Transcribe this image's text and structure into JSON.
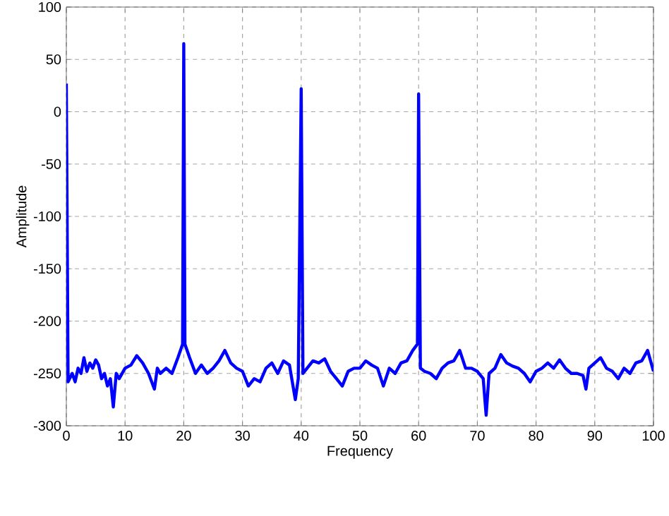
{
  "chart_data": {
    "type": "line",
    "xlabel": "Frequency",
    "ylabel": "Amplitude",
    "xlim": [
      0,
      100
    ],
    "ylim": [
      -300,
      100
    ],
    "xticks": [
      0,
      10,
      20,
      30,
      40,
      50,
      60,
      70,
      80,
      90,
      100
    ],
    "yticks": [
      -300,
      -250,
      -200,
      -150,
      -100,
      -50,
      0,
      50,
      100
    ],
    "grid": true,
    "line_style": "solid",
    "marker": "none",
    "series": [
      {
        "color": "#0000ff",
        "x": [
          0,
          0.3,
          1,
          1.5,
          2,
          2.5,
          3,
          3.5,
          4,
          4.5,
          5,
          5.5,
          6,
          6.5,
          7,
          7.5,
          8,
          8.5,
          9,
          10,
          11,
          12,
          13,
          14,
          15,
          15.5,
          16,
          17,
          18,
          19,
          19.8,
          20,
          20.2,
          21,
          22,
          23,
          24,
          25,
          26,
          27,
          28,
          29,
          30,
          31,
          32,
          33,
          34,
          35,
          36,
          37,
          38,
          39,
          39.5,
          40,
          40.3,
          41,
          42,
          43,
          44,
          45,
          46,
          47,
          48,
          49,
          50,
          51,
          52,
          53,
          54,
          55,
          56,
          57,
          58,
          59,
          59.8,
          60,
          60.3,
          61,
          62,
          63,
          64,
          65,
          66,
          67,
          68,
          69,
          70,
          71,
          71.5,
          72,
          73,
          74,
          75,
          76,
          77,
          78,
          79,
          80,
          81,
          82,
          83,
          84,
          85,
          86,
          87,
          88,
          88.5,
          89,
          90,
          91,
          92,
          93,
          94,
          95,
          96,
          97,
          98,
          99,
          100
        ],
        "values": [
          27,
          -258,
          -250,
          -258,
          -245,
          -250,
          -235,
          -248,
          -240,
          -245,
          -237,
          -242,
          -255,
          -250,
          -262,
          -255,
          -282,
          -250,
          -255,
          -245,
          -242,
          -233,
          -240,
          -250,
          -265,
          -245,
          -250,
          -245,
          -250,
          -235,
          -222,
          65,
          -222,
          -235,
          -250,
          -242,
          -250,
          -245,
          -238,
          -228,
          -240,
          -245,
          -248,
          -262,
          -255,
          -258,
          -245,
          -240,
          -250,
          -238,
          -242,
          -275,
          -255,
          22,
          -250,
          -245,
          -238,
          -240,
          -236,
          -248,
          -255,
          -262,
          -248,
          -245,
          -245,
          -238,
          -242,
          -245,
          -262,
          -245,
          -250,
          -240,
          -238,
          -228,
          -222,
          17,
          -245,
          -248,
          -250,
          -255,
          -245,
          -240,
          -238,
          -228,
          -245,
          -245,
          -248,
          -255,
          -290,
          -250,
          -245,
          -232,
          -240,
          -243,
          -245,
          -250,
          -258,
          -248,
          -245,
          -240,
          -245,
          -237,
          -245,
          -250,
          -250,
          -252,
          -265,
          -245,
          -240,
          -235,
          -245,
          -248,
          -255,
          -245,
          -250,
          -240,
          -238,
          -228,
          -248
        ]
      }
    ]
  }
}
